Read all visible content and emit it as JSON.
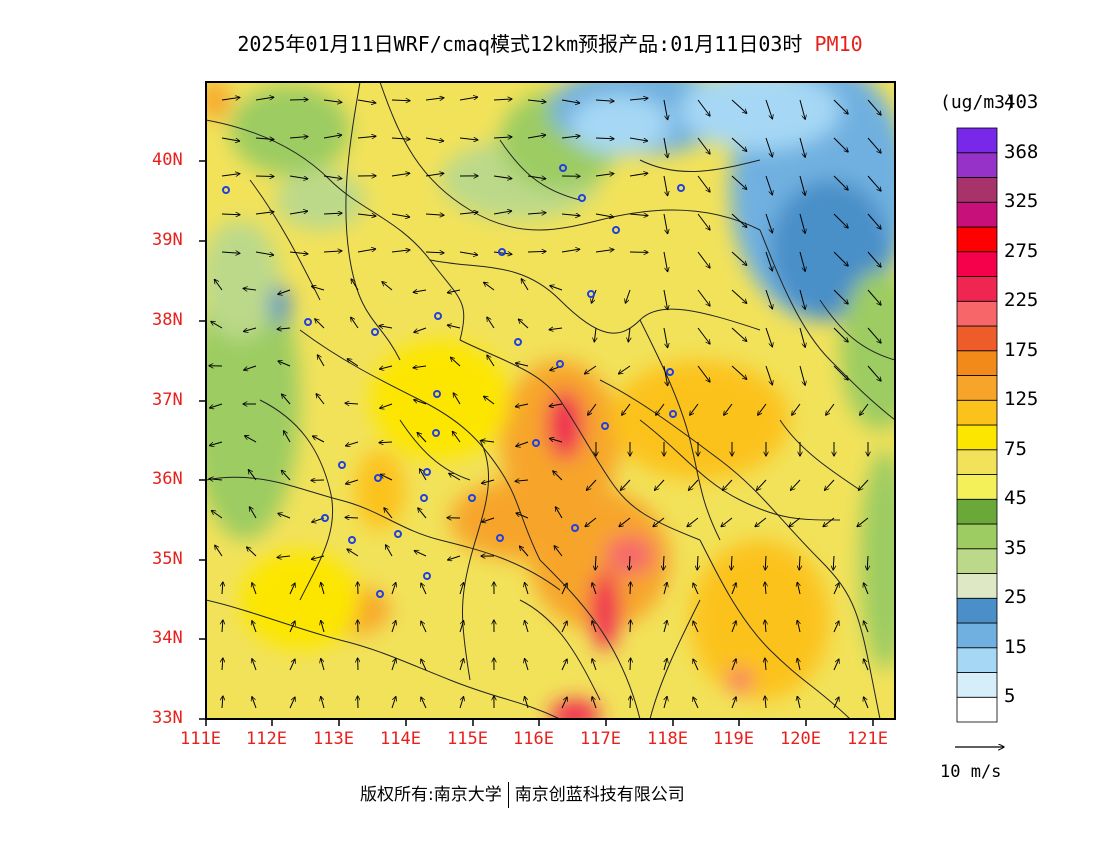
{
  "title": {
    "main": "2025年01月11日WRF/cmaq模式12km预报产品:01月11日03时",
    "variable": "PM10"
  },
  "axes": {
    "x_ticks": [
      "111E",
      "112E",
      "113E",
      "114E",
      "115E",
      "116E",
      "117E",
      "118E",
      "119E",
      "120E",
      "121E"
    ],
    "y_ticks": [
      "33N",
      "34N",
      "35N",
      "36N",
      "37N",
      "38N",
      "39N",
      "40N"
    ],
    "tick_color": "#e8201c"
  },
  "colorbar": {
    "unit": "(ug/m3)",
    "labels": [
      "5",
      "15",
      "25",
      "35",
      "45",
      "75",
      "125",
      "175",
      "225",
      "275",
      "325",
      "368",
      "403"
    ],
    "colors": [
      "#ffffff",
      "#d6eefa",
      "#a6d8f5",
      "#6fb0e0",
      "#4a8fc8",
      "#dfe8c4",
      "#bcd98a",
      "#9ccc62",
      "#6aa83a",
      "#f4f05a",
      "#f2e25a",
      "#fce600",
      "#fcc21c",
      "#f7a52a",
      "#f28a1a",
      "#ee5c2a",
      "#f7676a",
      "#f02652",
      "#f5004a",
      "#ff0000",
      "#c8107a",
      "#a8326a",
      "#9632c8",
      "#7828e8"
    ]
  },
  "wind_reference": {
    "label": "10 m/s"
  },
  "footer": {
    "copyright": "版权所有:南京大学",
    "company": "南京创蓝科技有限公司"
  },
  "stations_count_visible": 36
}
